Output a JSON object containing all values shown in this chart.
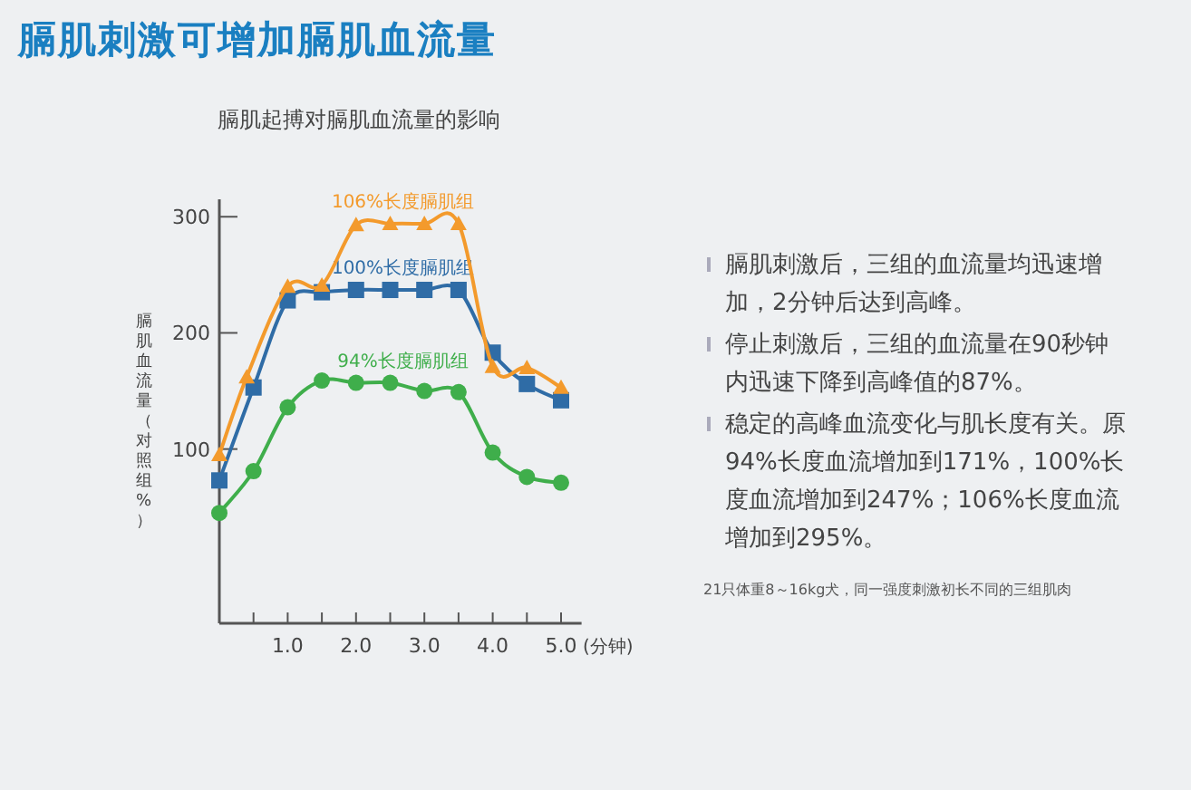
{
  "chart_data": {
    "type": "line",
    "title": "膈肌刺激可增加膈肌血流量",
    "subtitle": "膈肌起搏对膈肌血流量的影响",
    "xlabel": "(分钟)",
    "ylabel": "膈肌血流量（对照组%）",
    "xlim": [
      0,
      5.3
    ],
    "ylim": [
      -50,
      315
    ],
    "xticks": [
      {
        "value": 0.5,
        "label": null
      },
      {
        "value": 1,
        "label": "1.0"
      },
      {
        "value": 1.5,
        "label": null
      },
      {
        "value": 2,
        "label": "2.0"
      },
      {
        "value": 2.5,
        "label": null
      },
      {
        "value": 3,
        "label": "3.0"
      },
      {
        "value": 3.5,
        "label": null
      },
      {
        "value": 4,
        "label": "4.0"
      },
      {
        "value": 4.5,
        "label": null
      },
      {
        "value": 5,
        "label": "5.0"
      }
    ],
    "yticks": [
      100,
      200,
      300
    ],
    "grid": false,
    "series": [
      {
        "name": "106%长度膈肌组",
        "color": "#f39a2c",
        "marker": "triangle",
        "x": [
          0,
          0.4,
          1,
          1.5,
          2,
          2.5,
          3,
          3.5,
          4,
          4.5,
          5
        ],
        "values": [
          95,
          162,
          240,
          241,
          293,
          294,
          294,
          294,
          171,
          170,
          153
        ]
      },
      {
        "name": "100%长度膈肌组",
        "color": "#2f6ca6",
        "marker": "square",
        "x": [
          0,
          0.5,
          1,
          1.5,
          2,
          2.5,
          3,
          3.5,
          4,
          4.5,
          5
        ],
        "values": [
          73,
          153,
          228,
          235,
          237,
          237,
          237,
          237,
          183,
          156,
          142
        ]
      },
      {
        "name": "94%长度膈肌组",
        "color": "#3fae4b",
        "marker": "circle",
        "x": [
          0,
          0.5,
          1,
          1.5,
          2,
          2.5,
          3,
          3.5,
          4,
          4.5,
          5
        ],
        "values": [
          45,
          81,
          136,
          159,
          157,
          157,
          150,
          149,
          97,
          76,
          71
        ]
      }
    ],
    "annotations": [
      "膈肌刺激后，三组的血流量均迅速增加，2分钟后达到高峰。",
      "停止刺激后，三组的血流量在90秒钟内迅速下降到高峰值的87%。",
      "稳定的高峰血流变化与肌长度有关。原94%长度血流增加到171%，100%长度血流增加到247%；106%长度血流增加到295%。",
      "21只体重8～16kg犬，同一强度刺激初长不同的三组肌肉"
    ]
  }
}
